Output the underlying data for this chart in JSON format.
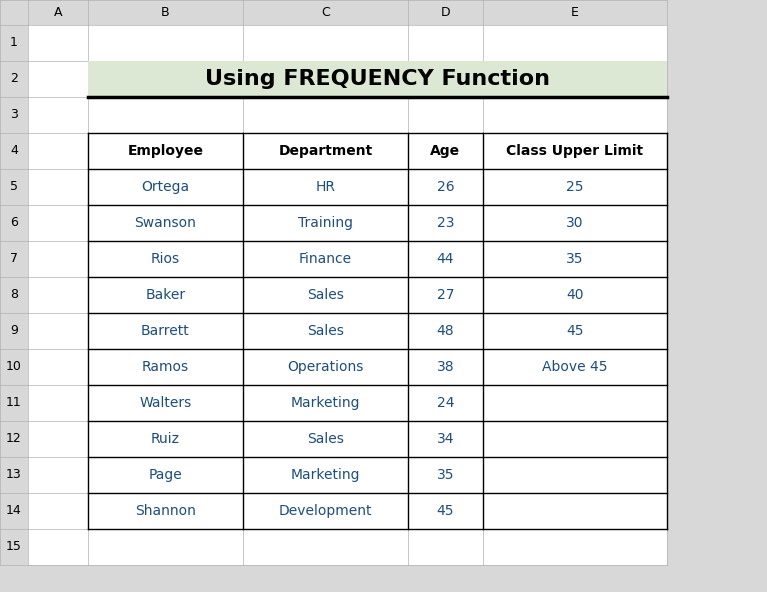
{
  "title": "Using FREQUENCY Function",
  "title_bg": "#dce8d4",
  "title_border": "#000000",
  "title_fontsize": 16,
  "col_headers": [
    "Employee",
    "Department",
    "Age",
    "Class Upper Limit"
  ],
  "rows": [
    [
      "Ortega",
      "HR",
      "26",
      "25"
    ],
    [
      "Swanson",
      "Training",
      "23",
      "30"
    ],
    [
      "Rios",
      "Finance",
      "44",
      "35"
    ],
    [
      "Baker",
      "Sales",
      "27",
      "40"
    ],
    [
      "Barrett",
      "Sales",
      "48",
      "45"
    ],
    [
      "Ramos",
      "Operations",
      "38",
      "Above 45"
    ],
    [
      "Walters",
      "Marketing",
      "24",
      ""
    ],
    [
      "Ruiz",
      "Sales",
      "34",
      ""
    ],
    [
      "Page",
      "Marketing",
      "35",
      ""
    ],
    [
      "Shannon",
      "Development",
      "45",
      ""
    ]
  ],
  "header_text_color": "#000000",
  "row_text_color": "#1f4e79",
  "figure_bg": "#d8d8d8",
  "sheet_bg": "#ffffff",
  "col_header_bg": "#d8d8d8",
  "row_num_bg": "#d8d8d8",
  "table_border_color": "#000000",
  "grid_color": "#b0b0b0",
  "col_letters": [
    "A",
    "B",
    "C",
    "D",
    "E"
  ],
  "num_rows": 15,
  "col_letter_fontsize": 9,
  "row_num_fontsize": 9,
  "data_fontsize": 10,
  "header_fontsize": 10
}
